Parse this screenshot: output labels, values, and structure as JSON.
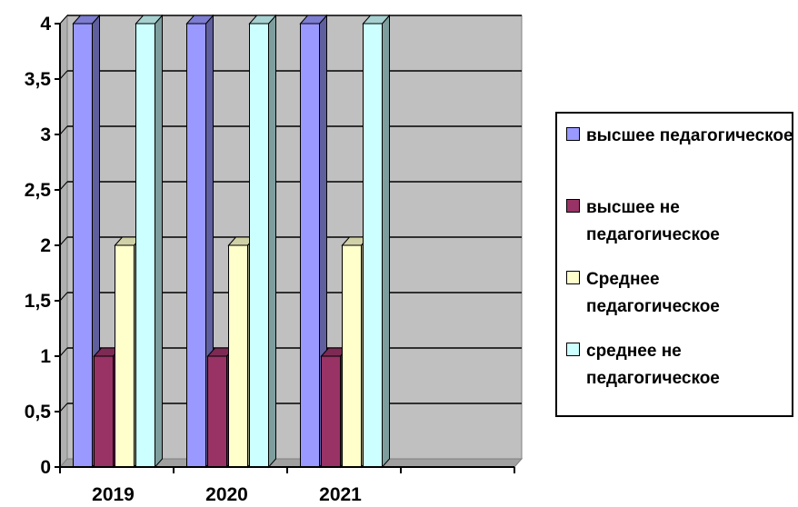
{
  "chart_data": {
    "type": "bar",
    "categories": [
      "2019",
      "2020",
      "2021",
      ""
    ],
    "ylim": [
      0,
      4
    ],
    "yticks": [
      "0",
      "0,5",
      "1",
      "1,5",
      "2",
      "2,5",
      "3",
      "3,5",
      "4"
    ],
    "grid": true,
    "plot_background": "#c0c0c0",
    "legend_position": "right",
    "series": [
      {
        "name": "высшее педагогическое",
        "color": "#9999ff",
        "values": [
          4,
          4,
          4,
          null
        ]
      },
      {
        "name": "высшее не педагогическое",
        "color": "#993366",
        "values": [
          1,
          1,
          1,
          null
        ]
      },
      {
        "name": "Среднее педагогическое",
        "color": "#ffffcc",
        "values": [
          2,
          2,
          2,
          null
        ]
      },
      {
        "name": "среднее не педагогическое",
        "color": "#ccffff",
        "values": [
          4,
          4,
          4,
          null
        ]
      }
    ]
  }
}
